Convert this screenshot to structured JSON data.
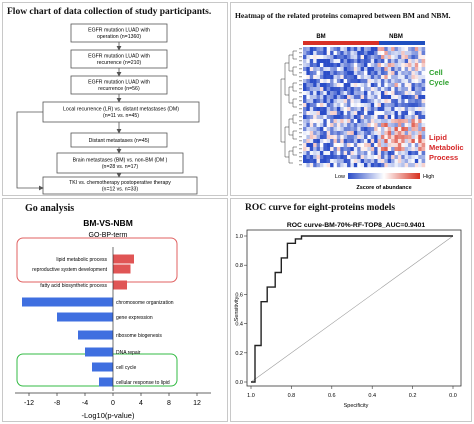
{
  "flowchart": {
    "title": "Flow chart of data collection of study participants.",
    "boxes": [
      {
        "line1": "EGFR mutation LUAD with",
        "line2": "operation (n=1360)"
      },
      {
        "line1": "EGFR mutation LUAD with",
        "line2": "recurrence (n=210)"
      },
      {
        "line1": "EGFR mutation LUAD with",
        "line2": "recurrence (n=56)"
      },
      {
        "line1": "Local recurrence (LR)  vs. distant metastases (DM)",
        "line2": "(n=11 vs. n=45)"
      },
      {
        "line1": "Distant metastases (n=45)",
        "line2": ""
      },
      {
        "line1": "Brain metastases (BM) vs. non-BM (DM )",
        "line2": "(n=28 vs. n=17)"
      },
      {
        "line1": "TKI vs. chemotherapy postoperative therapy",
        "line2": "(n=12 vs. n=33)"
      }
    ]
  },
  "heatmap": {
    "title": "Heatmap of the related proteins comapred between BM and NBM.",
    "groups": [
      "BM",
      "NBM"
    ],
    "side_labels": {
      "cell_cycle": [
        "Cell",
        "Cycle"
      ],
      "lipid": [
        "Lipid",
        "Metabolic",
        "Process"
      ]
    },
    "colorbar": {
      "low": "Low",
      "high": "High",
      "caption": "Zscore of abundance"
    },
    "colors": {
      "bm": "#d73027",
      "nbm": "#1f4fbf",
      "cell_cycle_label": "#2ca02c",
      "lipid_label": "#d62728",
      "heat_low": "#2b4dc8",
      "heat_high": "#d7301f"
    }
  },
  "go": {
    "title": "Go analysis",
    "chart_title": "BM-VS-NBM",
    "chart_subtitle": "GO-BP-term",
    "xlabel": "-Log10(p-value)",
    "colors": {
      "pos": "#e05555",
      "neg": "#3f6fe0",
      "lipid_box": "#e06060",
      "cell_box": "#33bb44"
    }
  },
  "roc": {
    "title": "ROC curve for eight-proteins models",
    "chart_title": "ROC curve-BM-70%-RF-TOP8_AUC=0.9401"
  },
  "chart_data": [
    {
      "type": "bar",
      "orientation": "horizontal",
      "title": "BM-VS-NBM",
      "subtitle": "GO-BP-term",
      "xlabel": "-Log10(p-value)",
      "ylabel": "",
      "xlim": [
        -14,
        14
      ],
      "xticks": [
        "-12",
        "-8",
        "-4",
        "0",
        "4",
        "8",
        "12"
      ],
      "categories": [
        "lipid metabolic process",
        "reproductive system development",
        "fatty acid biosynthetic process",
        "chromosome organization",
        "gene expression",
        "ribosome biogenesis",
        "DNA repair",
        "cell cycle",
        "cellular response to lipid"
      ],
      "values": [
        3.0,
        2.5,
        2.0,
        -13.0,
        -8.0,
        -5.0,
        -4.0,
        -3.0,
        -2.0
      ]
    },
    {
      "type": "line",
      "title": "ROC curve-BM-70%-RF-TOP8_AUC=0.9401",
      "xlabel": "Specificity",
      "ylabel": "Sensitivity",
      "xlim": [
        1.0,
        0.0
      ],
      "ylim": [
        0.0,
        1.0
      ],
      "xticks": [
        "1.0",
        "0.8",
        "0.6",
        "0.4",
        "0.2",
        "0.0"
      ],
      "yticks": [
        "0.0",
        "0.2",
        "0.4",
        "0.6",
        "0.8",
        "1.0"
      ],
      "series": [
        {
          "x": [
            1.0,
            0.98,
            0.98,
            0.95,
            0.95,
            0.92,
            0.92,
            0.88,
            0.88,
            0.85,
            0.85,
            0.82,
            0.82,
            0.78,
            0.78,
            0.75,
            0.75,
            0.0
          ],
          "y": [
            0.0,
            0.0,
            0.25,
            0.25,
            0.55,
            0.55,
            0.65,
            0.65,
            0.75,
            0.75,
            0.85,
            0.85,
            0.95,
            0.95,
            0.98,
            0.98,
            1.0,
            1.0
          ]
        }
      ],
      "reference_line": {
        "x": [
          1.0,
          0.0
        ],
        "y": [
          0.0,
          1.0
        ]
      }
    }
  ]
}
